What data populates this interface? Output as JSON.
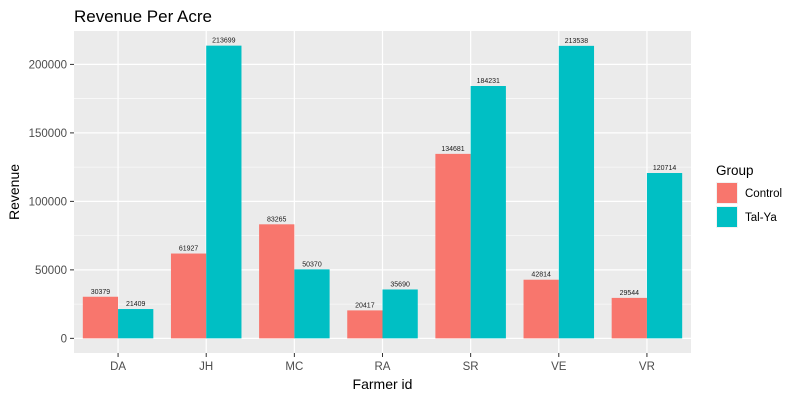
{
  "chart_data": {
    "type": "bar",
    "title": "Revenue Per Acre",
    "xlabel": "Farmer id",
    "ylabel": "Revenue",
    "categories": [
      "DA",
      "JH",
      "MC",
      "RA",
      "SR",
      "VE",
      "VR"
    ],
    "series": [
      {
        "name": "Control",
        "color": "#F8766D",
        "values": [
          30379,
          61927,
          83265,
          20417,
          134681,
          42814,
          29544
        ]
      },
      {
        "name": "Tal-Ya",
        "color": "#00BFC4",
        "values": [
          21409,
          213699,
          50370,
          35690,
          184231,
          213538,
          120714
        ]
      }
    ],
    "yticks": [
      0,
      50000,
      100000,
      150000,
      200000
    ],
    "ylim": [
      -10685,
      224384
    ],
    "legend": {
      "title": "Group",
      "position": "right"
    },
    "grid": true,
    "panel_background": "#EBEBEB"
  }
}
